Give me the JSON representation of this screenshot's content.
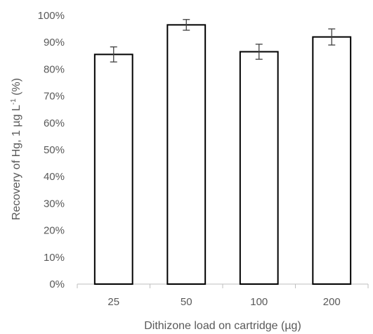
{
  "chart_data": {
    "type": "bar",
    "title": "",
    "xlabel": "Dithizone load on cartridge (µg)",
    "ylabel_main": "Recovery of Hg, 1 µg L",
    "ylabel_sup": "-1",
    "ylabel_tail": " (%)",
    "categories": [
      "25",
      "50",
      "100",
      "200"
    ],
    "values": [
      85.5,
      96.5,
      86.5,
      92.0
    ],
    "error": [
      2.8,
      2.0,
      2.8,
      3.0
    ],
    "ylim": [
      0,
      100
    ],
    "yticks": [
      0,
      10,
      20,
      30,
      40,
      50,
      60,
      70,
      80,
      90,
      100
    ],
    "ytick_labels": [
      "0%",
      "10%",
      "20%",
      "30%",
      "40%",
      "50%",
      "60%",
      "70%",
      "80%",
      "90%",
      "100%"
    ],
    "grid": false,
    "legend": "none",
    "colors": {
      "bar_fill": "#ffffff",
      "bar_stroke": "#000000",
      "axis": "#bfbfbf",
      "text": "#595959",
      "error_bar": "#404040"
    }
  }
}
